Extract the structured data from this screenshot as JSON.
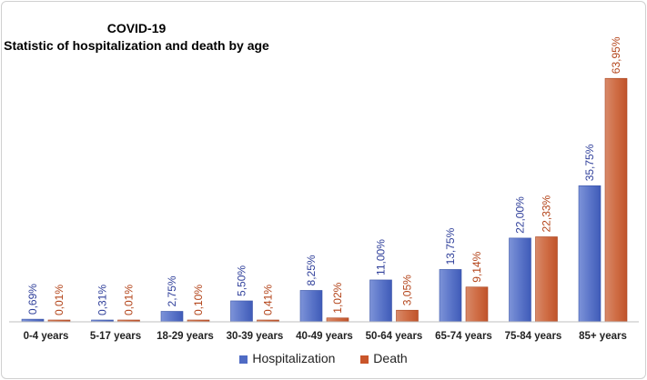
{
  "chart_data": {
    "type": "bar",
    "title": "COVID-19",
    "subtitle": "Statistic of hospitalization and death by age",
    "categories": [
      "0-4 years",
      "5-17 years",
      "18-29 years",
      "30-39 years",
      "40-49 years",
      "50-64 years",
      "65-74 years",
      "75-84 years",
      "85+ years"
    ],
    "series": [
      {
        "name": "Hospitalization",
        "color": "#4f6bc4",
        "values": [
          0.69,
          0.31,
          2.75,
          5.5,
          8.25,
          11.0,
          13.75,
          22.0,
          35.75
        ],
        "labels": [
          "0,69%",
          "0,31%",
          "2,75%",
          "5,50%",
          "8,25%",
          "11,00%",
          "13,75%",
          "22,00%",
          "35,75%"
        ]
      },
      {
        "name": "Death",
        "color": "#c9552a",
        "values": [
          0.01,
          0.01,
          0.1,
          0.41,
          1.02,
          3.05,
          9.14,
          22.33,
          63.95
        ],
        "labels": [
          "0,01%",
          "0,01%",
          "0,10%",
          "0,41%",
          "1,02%",
          "3,05%",
          "9,14%",
          "22,33%",
          "63,95%"
        ]
      }
    ],
    "xlabel": "",
    "ylabel": "",
    "ylim": [
      0,
      64
    ],
    "grid": false,
    "legend_position": "bottom"
  }
}
